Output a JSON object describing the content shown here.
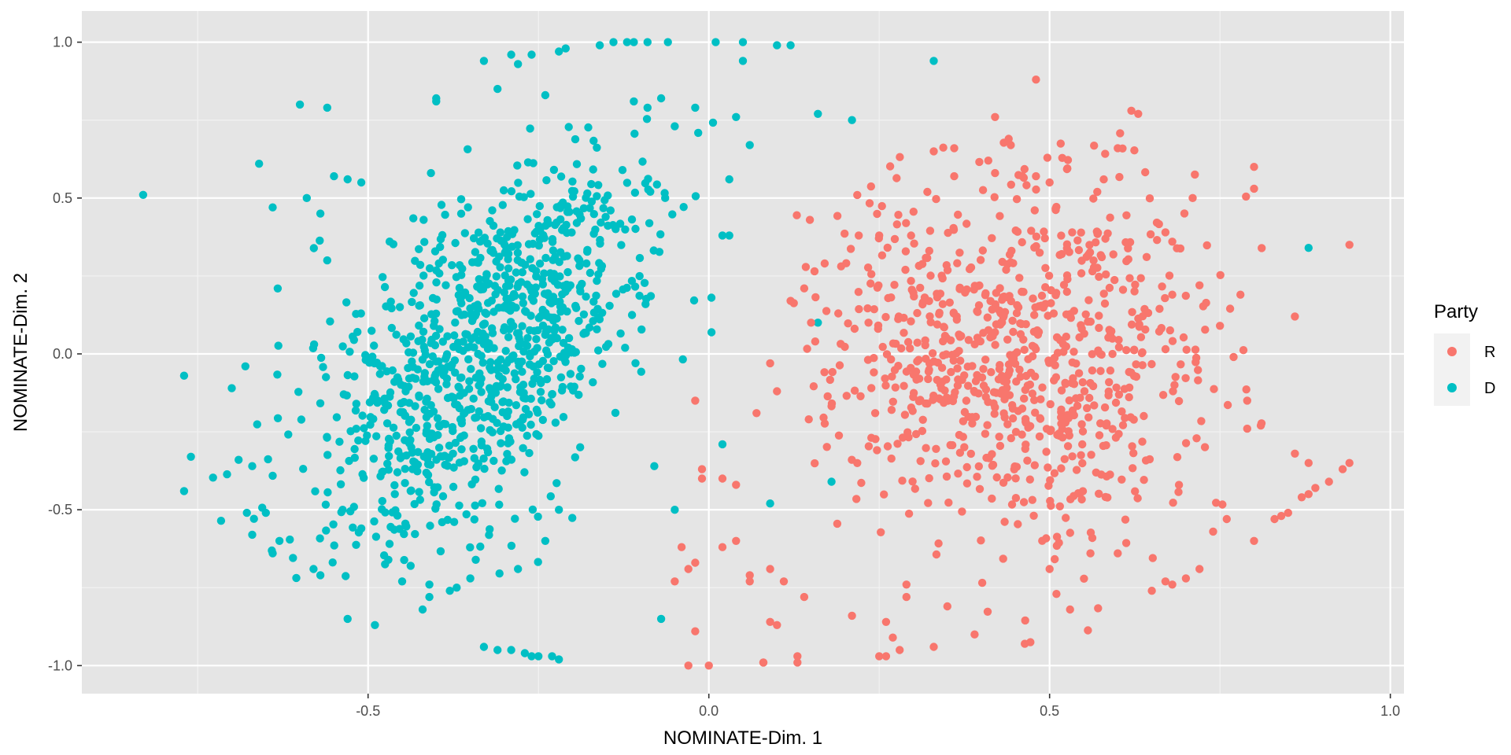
{
  "chart_data": {
    "type": "scatter",
    "title": "",
    "xlabel": "NOMINATE-Dim. 1",
    "ylabel": "NOMINATE-Dim. 2",
    "xlim": [
      -0.92,
      1.02
    ],
    "ylim": [
      -1.09,
      1.1
    ],
    "x_ticks": [
      -0.5,
      0.0,
      0.5,
      1.0
    ],
    "x_tick_labels": [
      "-0.5",
      "0.0",
      "0.5",
      "1.0"
    ],
    "y_ticks": [
      -1.0,
      -0.5,
      0.0,
      0.5,
      1.0
    ],
    "y_tick_labels": [
      "-1.0",
      "-0.5",
      "0.0",
      "0.5",
      "1.0"
    ],
    "grid": true,
    "panel_background": "#e5e5e5",
    "legend": {
      "title": "Party",
      "position": "right",
      "entries": [
        "R",
        "D"
      ]
    },
    "series": [
      {
        "name": "R",
        "color": "#f8766d",
        "points": [
          [
            0.48,
            0.88
          ],
          [
            0.42,
            0.76
          ],
          [
            0.63,
            0.77
          ],
          [
            0.62,
            0.78
          ],
          [
            0.33,
            0.65
          ],
          [
            0.36,
            0.66
          ],
          [
            0.44,
            0.69
          ],
          [
            0.41,
            0.62
          ],
          [
            0.6,
            0.66
          ],
          [
            0.8,
            0.6
          ],
          [
            0.8,
            0.53
          ],
          [
            0.71,
            0.5
          ],
          [
            0.94,
            0.35
          ],
          [
            0.36,
            0.57
          ],
          [
            0.42,
            0.58
          ],
          [
            0.46,
            0.57
          ],
          [
            0.48,
            0.57
          ],
          [
            0.5,
            0.55
          ],
          [
            0.57,
            0.52
          ],
          [
            0.25,
            0.38
          ],
          [
            0.22,
            0.38
          ],
          [
            0.17,
            0.29
          ],
          [
            0.14,
            0.21
          ],
          [
            0.19,
            0.13
          ],
          [
            0.15,
            0.1
          ],
          [
            0.78,
            0.19
          ],
          [
            0.86,
            0.12
          ],
          [
            0.67,
            0.39
          ],
          [
            0.68,
            0.36
          ],
          [
            0.68,
            0.19
          ],
          [
            0.72,
            0.22
          ],
          [
            0.75,
            0.09
          ],
          [
            0.77,
            -0.01
          ],
          [
            0.79,
            -0.15
          ],
          [
            0.79,
            -0.24
          ],
          [
            0.81,
            -0.23
          ],
          [
            0.86,
            -0.32
          ],
          [
            0.88,
            -0.35
          ],
          [
            0.94,
            -0.35
          ],
          [
            0.93,
            -0.37
          ],
          [
            0.91,
            -0.41
          ],
          [
            0.89,
            -0.43
          ],
          [
            0.88,
            -0.45
          ],
          [
            0.87,
            -0.46
          ],
          [
            0.85,
            -0.51
          ],
          [
            0.84,
            -0.52
          ],
          [
            0.83,
            -0.53
          ],
          [
            0.8,
            -0.6
          ],
          [
            0.76,
            -0.53
          ],
          [
            0.74,
            -0.57
          ],
          [
            0.72,
            -0.69
          ],
          [
            0.7,
            -0.72
          ],
          [
            0.67,
            -0.73
          ],
          [
            0.68,
            -0.74
          ],
          [
            0.65,
            -0.76
          ],
          [
            0.56,
            -0.64
          ],
          [
            0.6,
            -0.64
          ],
          [
            0.53,
            -0.82
          ],
          [
            0.51,
            -0.77
          ],
          [
            0.5,
            -0.69
          ],
          [
            0.39,
            -0.9
          ],
          [
            0.33,
            -0.94
          ],
          [
            0.28,
            -0.95
          ],
          [
            0.25,
            -0.97
          ],
          [
            0.26,
            -0.97
          ],
          [
            0.27,
            -0.91
          ],
          [
            0.26,
            -0.86
          ],
          [
            0.35,
            -0.81
          ],
          [
            0.29,
            -0.78
          ],
          [
            0.29,
            -0.74
          ],
          [
            0.21,
            -0.84
          ],
          [
            0.14,
            -0.78
          ],
          [
            0.13,
            -0.99
          ],
          [
            0.13,
            -0.97
          ],
          [
            0.1,
            -0.87
          ],
          [
            0.09,
            -0.86
          ],
          [
            0.08,
            -0.99
          ],
          [
            0.08,
            -0.99
          ],
          [
            0.0,
            -1.0
          ],
          [
            -0.03,
            -1.0
          ],
          [
            -0.02,
            -0.89
          ],
          [
            -0.05,
            -0.73
          ],
          [
            -0.03,
            -0.69
          ],
          [
            -0.02,
            -0.67
          ],
          [
            0.02,
            -0.62
          ],
          [
            -0.04,
            -0.62
          ],
          [
            0.06,
            -0.73
          ],
          [
            0.06,
            -0.71
          ],
          [
            0.09,
            -0.69
          ],
          [
            0.11,
            -0.73
          ],
          [
            -0.01,
            -0.37
          ],
          [
            -0.01,
            -0.4
          ],
          [
            0.02,
            -0.4
          ],
          [
            0.04,
            -0.42
          ],
          [
            0.07,
            -0.19
          ],
          [
            0.09,
            -0.03
          ],
          [
            0.1,
            -0.12
          ],
          [
            -0.02,
            -0.15
          ],
          [
            0.12,
            0.17
          ],
          [
            0.04,
            -0.6
          ]
        ],
        "cluster": {
          "cx": 0.45,
          "cy": 0.02,
          "sx": 0.14,
          "sy": 0.3,
          "n": 820,
          "seed": 7,
          "xr": [
            0.1,
            0.82
          ],
          "yr": [
            -0.98,
            0.72
          ]
        }
      },
      {
        "name": "D",
        "color": "#00bfc4",
        "points": [
          [
            -0.83,
            0.51
          ],
          [
            -0.6,
            0.8
          ],
          [
            -0.56,
            0.79
          ],
          [
            -0.66,
            0.61
          ],
          [
            -0.64,
            0.47
          ],
          [
            -0.59,
            0.5
          ],
          [
            -0.57,
            0.45
          ],
          [
            -0.56,
            0.3
          ],
          [
            -0.55,
            0.57
          ],
          [
            -0.53,
            0.56
          ],
          [
            -0.51,
            0.55
          ],
          [
            -0.77,
            -0.07
          ],
          [
            -0.76,
            -0.33
          ],
          [
            -0.77,
            -0.44
          ],
          [
            -0.7,
            -0.11
          ],
          [
            -0.68,
            -0.04
          ],
          [
            -0.69,
            -0.34
          ],
          [
            -0.67,
            -0.36
          ],
          [
            -0.67,
            -0.58
          ],
          [
            -0.64,
            -0.64
          ],
          [
            -0.63,
            -0.6
          ],
          [
            -0.65,
            -0.51
          ],
          [
            -0.58,
            -0.69
          ],
          [
            -0.57,
            -0.71
          ],
          [
            -0.53,
            -0.85
          ],
          [
            -0.49,
            -0.87
          ],
          [
            -0.51,
            -0.56
          ],
          [
            -0.45,
            -0.73
          ],
          [
            -0.42,
            -0.82
          ],
          [
            -0.41,
            -0.74
          ],
          [
            -0.41,
            -0.78
          ],
          [
            -0.38,
            -0.76
          ],
          [
            -0.37,
            -0.75
          ],
          [
            -0.35,
            -0.72
          ],
          [
            -0.33,
            -0.94
          ],
          [
            -0.31,
            -0.95
          ],
          [
            -0.29,
            -0.95
          ],
          [
            -0.27,
            -0.96
          ],
          [
            -0.26,
            -0.97
          ],
          [
            -0.25,
            -0.97
          ],
          [
            -0.23,
            -0.97
          ],
          [
            -0.22,
            -0.98
          ],
          [
            -0.28,
            -0.69
          ],
          [
            -0.24,
            -0.6
          ],
          [
            -0.22,
            -0.5
          ],
          [
            -0.07,
            -0.85
          ],
          [
            -0.05,
            -0.5
          ],
          [
            -0.08,
            -0.36
          ],
          [
            0.02,
            -0.29
          ],
          [
            0.09,
            -0.48
          ],
          [
            0.18,
            -0.41
          ],
          [
            0.16,
            0.1
          ],
          [
            0.88,
            0.34
          ],
          [
            0.33,
            0.94
          ],
          [
            0.16,
            0.77
          ],
          [
            0.21,
            0.75
          ],
          [
            0.06,
            0.67
          ],
          [
            0.03,
            0.56
          ],
          [
            0.03,
            0.38
          ],
          [
            0.02,
            0.38
          ],
          [
            0.04,
            0.76
          ],
          [
            0.05,
            0.94
          ],
          [
            0.05,
            1.0
          ],
          [
            0.01,
            1.0
          ],
          [
            0.1,
            0.99
          ],
          [
            0.12,
            0.99
          ],
          [
            -0.06,
            1.0
          ],
          [
            -0.09,
            1.0
          ],
          [
            -0.11,
            1.0
          ],
          [
            -0.12,
            1.0
          ],
          [
            -0.14,
            1.0
          ],
          [
            -0.16,
            0.99
          ],
          [
            -0.26,
            0.96
          ],
          [
            -0.28,
            0.93
          ],
          [
            -0.29,
            0.96
          ],
          [
            -0.22,
            0.97
          ],
          [
            -0.21,
            0.98
          ],
          [
            -0.33,
            0.94
          ],
          [
            -0.4,
            0.82
          ],
          [
            -0.4,
            0.81
          ],
          [
            -0.31,
            0.85
          ],
          [
            -0.24,
            0.83
          ],
          [
            -0.07,
            0.82
          ],
          [
            -0.11,
            0.81
          ],
          [
            -0.09,
            0.79
          ],
          [
            -0.02,
            0.79
          ],
          [
            -0.05,
            0.73
          ]
        ],
        "cluster": {
          "cx": -0.33,
          "cy": 0.0,
          "sx": 0.13,
          "sy": 0.33,
          "rho": 0.62,
          "n": 980,
          "seed": 13,
          "xr": [
            -0.74,
            0.02
          ],
          "yr": [
            -0.72,
            0.78
          ]
        }
      }
    ]
  }
}
